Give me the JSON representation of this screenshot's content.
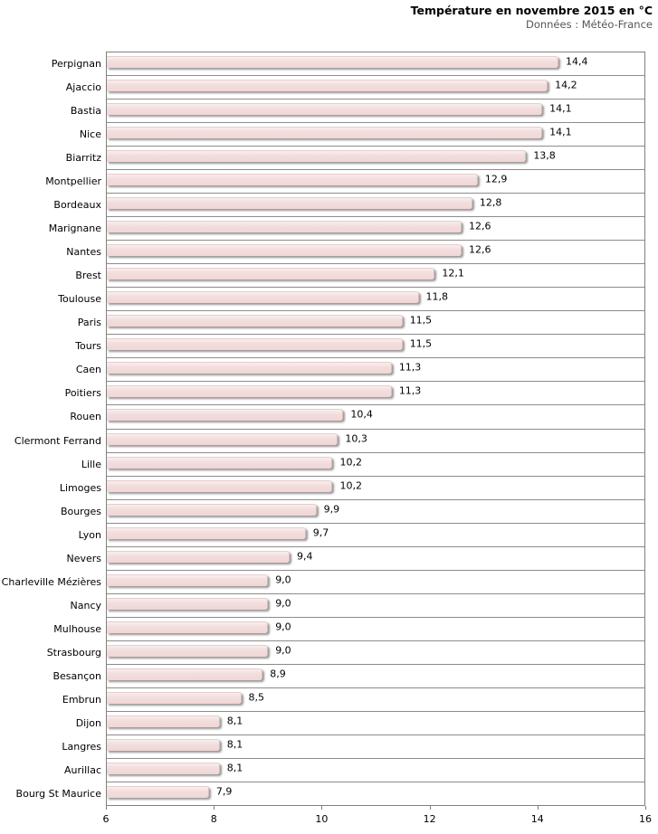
{
  "header": {
    "title": "Température en novembre 2015 en °C",
    "subtitle": "Données : Météo-France"
  },
  "chart_data": {
    "type": "bar",
    "orientation": "horizontal",
    "title": "Température en novembre 2015 en °C",
    "subtitle": "Données : Météo-France",
    "xlabel": "",
    "ylabel": "",
    "xlim": [
      6,
      16
    ],
    "xticks": [
      6,
      8,
      10,
      12,
      14,
      16
    ],
    "xtick_labels": [
      "6",
      "8",
      "10",
      "12",
      "14",
      "16"
    ],
    "grid": "category-separator-lines",
    "legend": "none",
    "bar_color": "#f2dcdb",
    "bar_shadow_color": "#828282",
    "categories": [
      "Perpignan",
      "Ajaccio",
      "Bastia",
      "Nice",
      "Biarritz",
      "Montpellier",
      "Bordeaux",
      "Marignane",
      "Nantes",
      "Brest",
      "Toulouse",
      "Paris",
      "Tours",
      "Caen",
      "Poitiers",
      "Rouen",
      "Clermont Ferrand",
      "Lille",
      "Limoges",
      "Bourges",
      "Lyon",
      "Nevers",
      "Charleville Mézières",
      "Nancy",
      "Mulhouse",
      "Strasbourg",
      "Besançon",
      "Embrun",
      "Dijon",
      "Langres",
      "Aurillac",
      "Bourg St Maurice"
    ],
    "values": [
      14.4,
      14.2,
      14.1,
      14.1,
      13.8,
      12.9,
      12.8,
      12.6,
      12.6,
      12.1,
      11.8,
      11.5,
      11.5,
      11.3,
      11.3,
      10.4,
      10.3,
      10.2,
      10.2,
      9.9,
      9.7,
      9.4,
      9.0,
      9.0,
      9.0,
      9.0,
      8.9,
      8.5,
      8.1,
      8.1,
      8.1,
      7.9
    ],
    "value_labels": [
      "14,4",
      "14,2",
      "14,1",
      "14,1",
      "13,8",
      "12,9",
      "12,8",
      "12,6",
      "12,6",
      "12,1",
      "11,8",
      "11,5",
      "11,5",
      "11,3",
      "11,3",
      "10,4",
      "10,3",
      "10,2",
      "10,2",
      "9,9",
      "9,7",
      "9,4",
      "9,0",
      "9,0",
      "9,0",
      "9,0",
      "8,9",
      "8,5",
      "8,1",
      "8,1",
      "8,1",
      "7,9"
    ]
  }
}
